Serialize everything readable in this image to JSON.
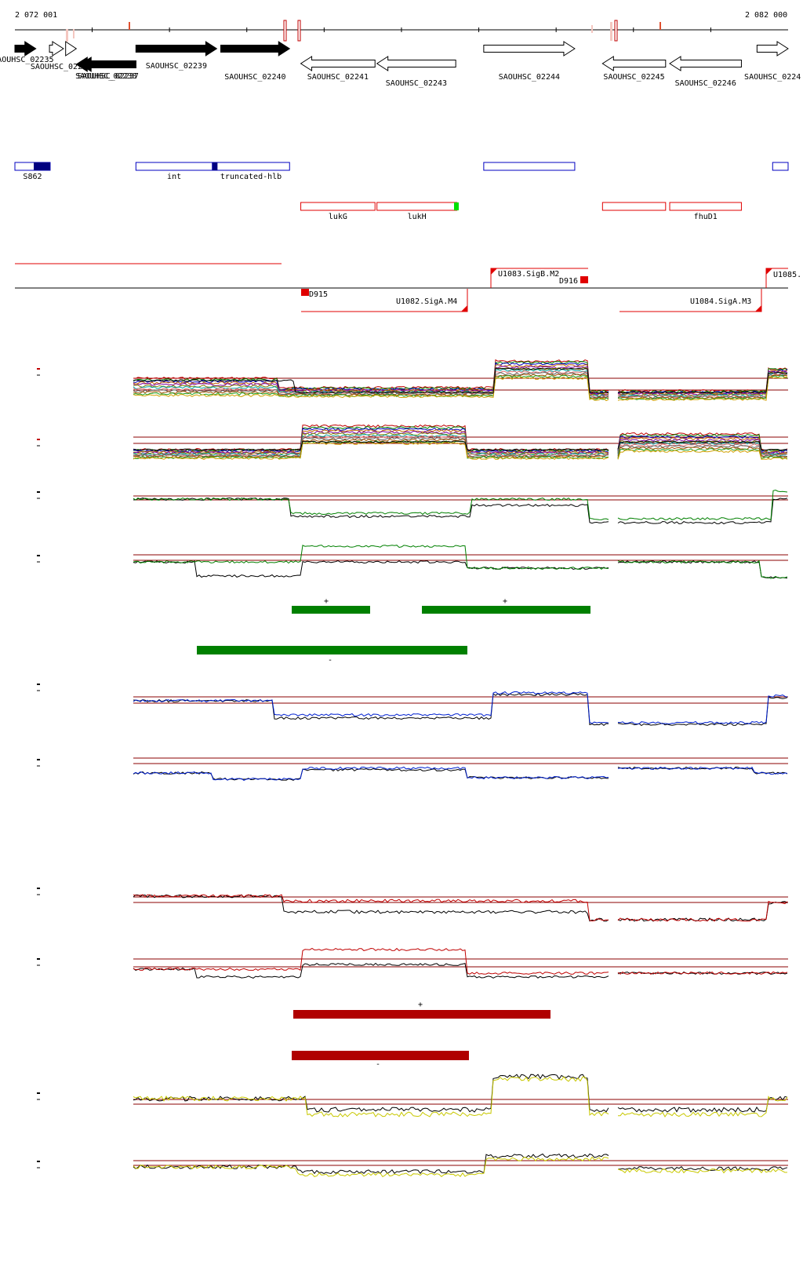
{
  "axis": {
    "start_label": "2 072 001",
    "end_label": "2 082 000",
    "start": 2072001,
    "end": 2082000
  },
  "genes": [
    {
      "id": "g235",
      "label": "AOUHSC_02235",
      "strand": "+",
      "start": 2072001,
      "end": 2072272,
      "fill": "black"
    },
    {
      "id": "g236",
      "label": "SAOUHSC_022",
      "strand": "+",
      "start": 2072448,
      "end": 2072629,
      "fill": "white"
    },
    {
      "id": "g236b",
      "label": "",
      "strand": "+",
      "start": 2072657,
      "end": 2072795,
      "fill": "white"
    },
    {
      "id": "g237",
      "label": "SAOUHSC_02237",
      "strand": "-",
      "start": 2072845,
      "end": 2073566,
      "fill": "black"
    },
    {
      "id": "g238",
      "label": "SAOUHSC_02238",
      "strand": "-",
      "start": 2072795,
      "end": 2073566,
      "fill": "black"
    },
    {
      "id": "g239",
      "label": "SAOUHSC_02239",
      "strand": "+",
      "start": 2073566,
      "end": 2074611,
      "fill": "black"
    },
    {
      "id": "g240",
      "label": "SAOUHSC_02240",
      "strand": "+",
      "start": 2074663,
      "end": 2075553,
      "fill": "black"
    },
    {
      "id": "g241",
      "label": "SAOUHSC_02241",
      "strand": "-",
      "start": 2075698,
      "end": 2076658,
      "fill": "white"
    },
    {
      "id": "g243",
      "label": "SAOUHSC_02243",
      "strand": "-",
      "start": 2076683,
      "end": 2077702,
      "fill": "white"
    },
    {
      "id": "g244",
      "label": "SAOUHSC_02244",
      "strand": "+",
      "start": 2078064,
      "end": 2079241,
      "fill": "white"
    },
    {
      "id": "g245",
      "label": "SAOUHSC_02245",
      "strand": "-",
      "start": 2079600,
      "end": 2080416,
      "fill": "white"
    },
    {
      "id": "g246",
      "label": "SAOUHSC_02246",
      "strand": "-",
      "start": 2080469,
      "end": 2081396,
      "fill": "white"
    },
    {
      "id": "g247",
      "label": "SAOUHSC_0224",
      "strand": "+",
      "start": 2081598,
      "end": 2082000,
      "fill": "white"
    }
  ],
  "features_blue": [
    {
      "label": "S862",
      "start": 2072001,
      "end": 2072457,
      "mark_start": 2072245,
      "mark_end": 2072457
    },
    {
      "label": "int",
      "start": 2073566,
      "end": 2074555,
      "mark_start": 0,
      "mark_end": 0
    },
    {
      "label": "truncated-hlb",
      "start": 2074555,
      "end": 2075553,
      "mark_start": 2074555,
      "mark_end": 2074621
    },
    {
      "label": "",
      "start": 2078064,
      "end": 2079241,
      "mark_start": 0,
      "mark_end": 0
    },
    {
      "label": "",
      "start": 2081800,
      "end": 2082000,
      "mark_start": 0,
      "mark_end": 0
    }
  ],
  "features_red": [
    {
      "label": "lukG",
      "start": 2075698,
      "end": 2076658
    },
    {
      "label": "lukH",
      "start": 2076683,
      "end": 2077717
    },
    {
      "label": "",
      "start": 2079600,
      "end": 2080416
    },
    {
      "label": "fhuD1",
      "start": 2080469,
      "end": 2081396
    }
  ],
  "transcripts": {
    "t1_label": "U1083.SigB.M2",
    "t2_label": "D916",
    "t3_label": "U1085.",
    "t4_label": "D915",
    "t5_label": "U1082.SigA.M4",
    "t6_label": "U1084.SigA.M3"
  },
  "tiling_bars": [
    {
      "strand_label": "+",
      "color": "#008000"
    },
    {
      "strand_label": "+",
      "color": "#008000"
    },
    {
      "strand_label": "-",
      "color": "#008000"
    },
    {
      "strand_label": "+",
      "color": "#b00000"
    },
    {
      "strand_label": "-",
      "color": "#b00000"
    }
  ],
  "colors": {
    "gene_black": "#000000",
    "feature_blue": "#0000c0",
    "feature_red": "#e00000",
    "green": "#008000",
    "blue": "#0020d0",
    "red": "#c00000",
    "yellow": "#c8c800",
    "threshold": "#8b0000"
  }
}
